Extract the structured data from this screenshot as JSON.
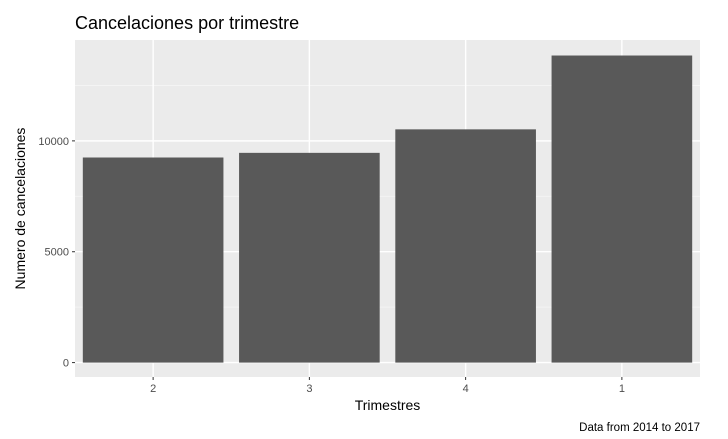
{
  "chart_data": {
    "type": "bar",
    "title": "Cancelaciones por trimestre",
    "xlabel": "Trimestres",
    "ylabel": "Numero de cancelaciones",
    "caption": "Data from 2014 to 2017",
    "categories": [
      "2",
      "3",
      "4",
      "1"
    ],
    "values": [
      9250,
      9460,
      10520,
      13850
    ],
    "ylim": [
      -650,
      14550
    ],
    "yticks": [
      0,
      5000,
      10000
    ],
    "ytick_labels": [
      "0",
      "5000",
      "10000"
    ],
    "grid": true,
    "legend": "none",
    "colors": {
      "bar": "#595959",
      "panel_background": "#ebebeb",
      "grid_major": "#ffffff",
      "grid_minor": "#f5f5f5",
      "tick": "#333333",
      "tick_label": "#4d4d4d"
    }
  }
}
